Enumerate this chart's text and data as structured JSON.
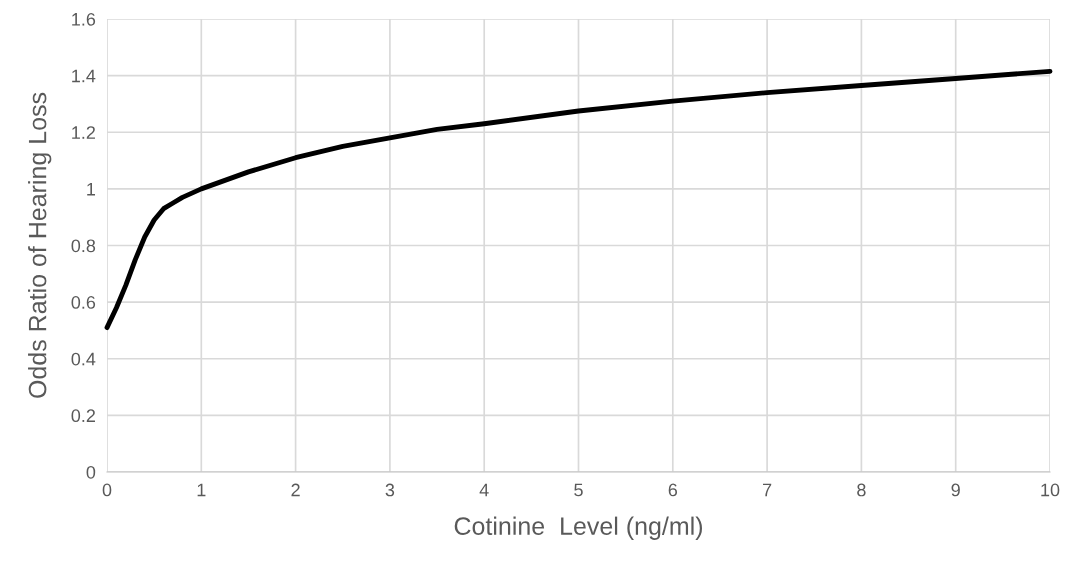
{
  "chart_data": {
    "type": "line",
    "xlabel": "Cotinine  Level (ng/ml)",
    "ylabel": "Odds Ratio of Hearing Loss",
    "series": [
      {
        "color": "#000000",
        "x": [
          0,
          0.1,
          0.2,
          0.3,
          0.4,
          0.5,
          0.6,
          0.7,
          0.8,
          1,
          1.5,
          2,
          2.5,
          3,
          3.5,
          4,
          5,
          6,
          7,
          8,
          9,
          10
        ],
        "values": [
          0.51,
          0.58,
          0.66,
          0.75,
          0.83,
          0.89,
          0.93,
          0.95,
          0.97,
          1.0,
          1.06,
          1.11,
          1.15,
          1.18,
          1.21,
          1.23,
          1.275,
          1.31,
          1.34,
          1.365,
          1.39,
          1.415
        ]
      }
    ],
    "xlim": [
      0,
      10
    ],
    "xticks": [
      0,
      1,
      2,
      3,
      4,
      5,
      6,
      7,
      8,
      9,
      10
    ],
    "ylim": [
      0,
      1.6
    ],
    "yticks": [
      0,
      0.2,
      0.4,
      0.6,
      0.8,
      1,
      1.2,
      1.4,
      1.6
    ],
    "grid": true,
    "marker": "none",
    "line_style": "solid",
    "legend": false
  }
}
